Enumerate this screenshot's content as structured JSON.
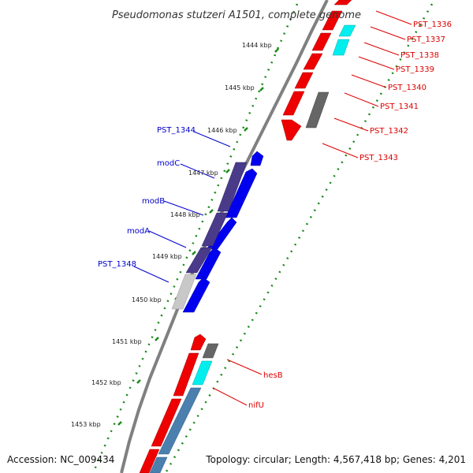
{
  "title": "Pseudomonas stutzeri A1501, complete genome",
  "accession_text": "Accession: NC_009434",
  "topology_text": "Topology: circular; Length: 4,567,418 bp; Genes: 4,201",
  "colors": {
    "backbone": "#808080",
    "red_gene": "#ee0000",
    "blue_gene": "#0000ee",
    "navy_gene": "#4a3a8a",
    "cyan_gene": "#00eeee",
    "steel_gene": "#4a7fae",
    "gray_gene": "#666666",
    "light_gray_gene": "#c8c8c8",
    "dots": "#1a8a1a",
    "red_label": "#dd0000",
    "blue_label": "#0000cc"
  },
  "ticks": [
    "1444 kbp",
    "1445 kbp",
    "1446 kbp",
    "1447 kbp",
    "1448 kbp",
    "1449 kbp",
    "1450 kbp",
    "1451 kbp",
    "1452 kbp",
    "1453 kbp"
  ],
  "labels_right": [
    "PST_1336",
    "PST_1337",
    "PST_1338",
    "PST_1339",
    "PST_1340",
    "PST_1341",
    "PST_1342",
    "PST_1343"
  ],
  "labels_left": [
    "PST_1344",
    "modC",
    "modB",
    "modA",
    "PST_1348"
  ],
  "labels_lower": [
    "hesB",
    "nifU"
  ]
}
